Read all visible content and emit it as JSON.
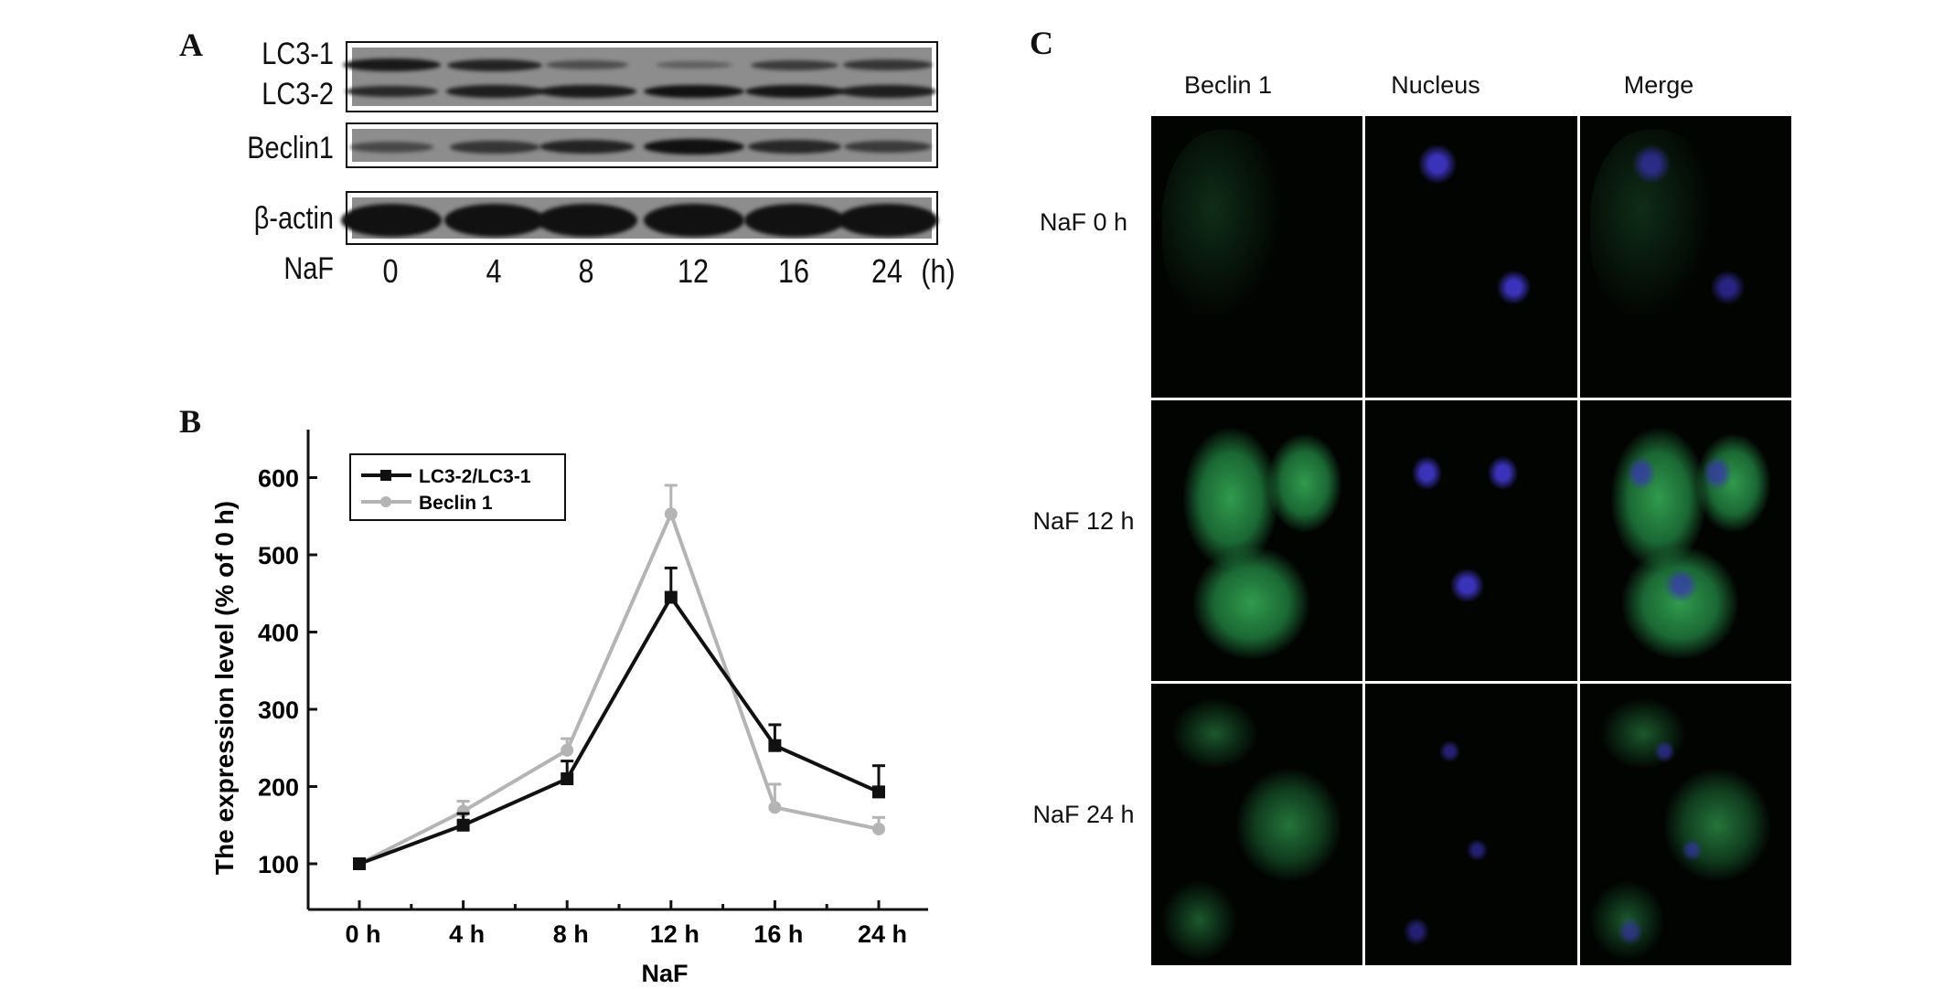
{
  "panel_a": {
    "letter": "A",
    "blots": [
      {
        "rows": [
          {
            "label": "LC3-1",
            "intensity": [
              0.9,
              0.8,
              0.35,
              0.15,
              0.55,
              0.6
            ]
          },
          {
            "label": "LC3-2",
            "intensity": [
              0.75,
              0.85,
              0.9,
              1.0,
              0.95,
              0.85
            ]
          }
        ]
      },
      {
        "rows": [
          {
            "label": "Beclin1",
            "intensity": [
              0.4,
              0.6,
              0.8,
              1.0,
              0.75,
              0.55
            ]
          }
        ]
      },
      {
        "rows": [
          {
            "label": "β-actin",
            "intensity": [
              1,
              1,
              1,
              1,
              1,
              1
            ]
          }
        ]
      }
    ],
    "treatment_label": "NaF",
    "lanes": [
      "0",
      "4",
      "8",
      "12",
      "16",
      "24"
    ],
    "unit": "(h)"
  },
  "panel_b": {
    "letter": "B"
  },
  "chart_data": {
    "type": "line",
    "xlabel": "NaF",
    "ylabel": "The expression level (% of 0 h)",
    "categories": [
      "0 h",
      "4 h",
      "8 h",
      "12 h",
      "16 h",
      "24 h"
    ],
    "ylim": [
      50,
      650
    ],
    "yticks": [
      100,
      200,
      300,
      400,
      500,
      600
    ],
    "grid": false,
    "legend_position": "top-left",
    "series": [
      {
        "name": "LC3-2/LC3-1",
        "color": "#111111",
        "marker": "square",
        "values": [
          100,
          150,
          210,
          445,
          253,
          193
        ],
        "error": [
          3,
          15,
          23,
          38,
          27,
          34
        ]
      },
      {
        "name": "Beclin 1",
        "color": "#b4b4b4",
        "marker": "circle",
        "values": [
          100,
          168,
          247,
          553,
          173,
          145
        ],
        "error": [
          3,
          13,
          15,
          37,
          30,
          15
        ]
      }
    ]
  },
  "panel_c": {
    "letter": "C",
    "columns": [
      "Beclin 1",
      "Nucleus",
      "Merge"
    ],
    "rows": [
      "NaF 0 h",
      "NaF 12 h",
      "NaF 24 h"
    ],
    "colors": {
      "beclin": "#3cc060",
      "nucleus": "#3a32b8"
    }
  }
}
